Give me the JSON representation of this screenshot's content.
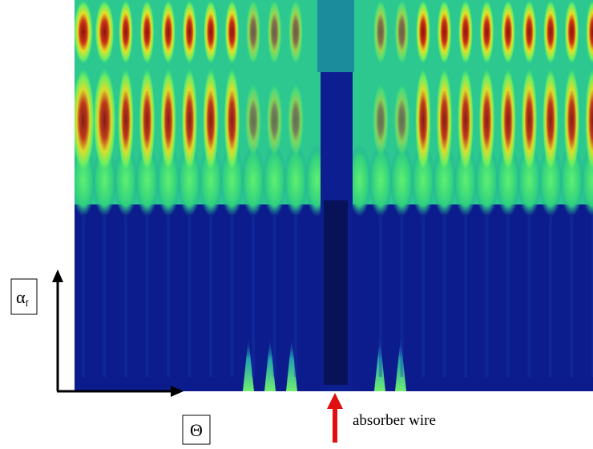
{
  "y_axis_label": {
    "symbol": "α",
    "subscript": "f"
  },
  "x_axis_label": "Θ",
  "annotation": "absorber wire"
}
